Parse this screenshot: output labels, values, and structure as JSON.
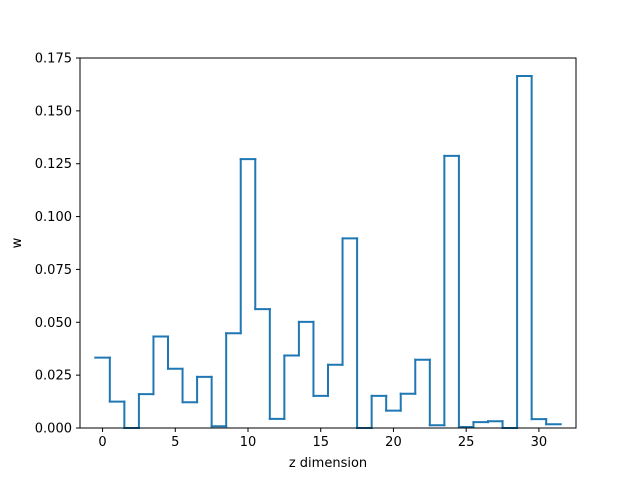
{
  "chart_data": {
    "type": "line",
    "style": "step histogram",
    "xlabel": "z dimension",
    "ylabel": "w",
    "xlim": [
      -1.55,
      32.55
    ],
    "ylim": [
      0,
      0.175
    ],
    "x_ticks": [
      0,
      5,
      10,
      15,
      20,
      25,
      30
    ],
    "y_ticks": [
      0.0,
      0.025,
      0.05,
      0.075,
      0.1,
      0.125,
      0.15,
      0.175
    ],
    "x_tick_labels": [
      "0",
      "5",
      "10",
      "15",
      "20",
      "25",
      "30"
    ],
    "y_tick_labels": [
      "0.000",
      "0.025",
      "0.050",
      "0.075",
      "0.100",
      "0.125",
      "0.150",
      "0.175"
    ],
    "grid": false,
    "line_color": "#1f77b4",
    "x": [
      0,
      1,
      2,
      3,
      4,
      5,
      6,
      7,
      8,
      9,
      10,
      11,
      12,
      13,
      14,
      15,
      16,
      17,
      18,
      19,
      20,
      21,
      22,
      23,
      24,
      25,
      26,
      27,
      28,
      29,
      30,
      31
    ],
    "values": [
      0.0333,
      0.0125,
      0.0,
      0.016,
      0.0433,
      0.028,
      0.0122,
      0.0242,
      0.0008,
      0.0448,
      0.1272,
      0.0562,
      0.0043,
      0.0343,
      0.0502,
      0.0152,
      0.0299,
      0.0897,
      0.0,
      0.0152,
      0.0082,
      0.0162,
      0.0323,
      0.0013,
      0.1287,
      0.0005,
      0.0028,
      0.0032,
      0.0,
      0.1665,
      0.0042,
      0.0018
    ]
  }
}
